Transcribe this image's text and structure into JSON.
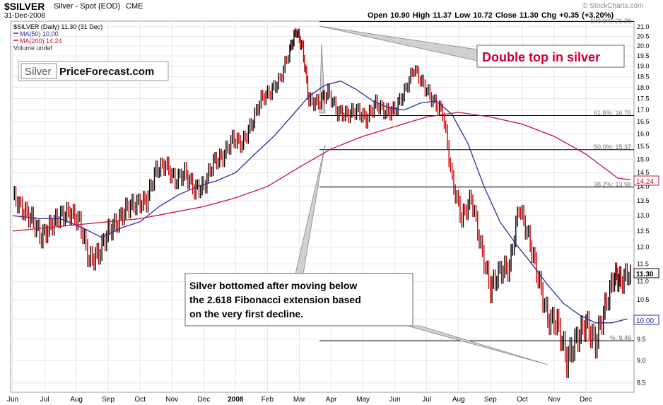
{
  "header": {
    "symbol": "$SILVER",
    "name": "Silver - Spot (EOD)",
    "exchange": "CME",
    "date": "31-Dec-2008",
    "ohlc": "Open 10.90  High 11.37  Low 10.72  Close 11.30  Chg +0.35 (+3.20%)",
    "watermark": "© StockCharts.com"
  },
  "legend": {
    "price": "$SILVER (Daily) 11.30 (31 Dec)",
    "ma50": "MA(50) 10.00",
    "ma200": "MA(200) 14.24",
    "volume": "Volume undef"
  },
  "logo": {
    "left": "Silver",
    "right": "PriceForecast.com"
  },
  "annotations": {
    "double_top": "Double top in silver",
    "note_line1": "Silver bottomed after moving below",
    "note_line2": "the 2.618 Fibonacci extension based",
    "note_line3": "on the very first decline."
  },
  "fib_labels": {
    "f100": "100.0%: 21.28",
    "f618": "61.8%: 16.76",
    "f50": "50.0%: 15.37",
    "f382": "38.2%: 13.98",
    "f9": "%: 9.46"
  },
  "price_tags": {
    "last": "11.30",
    "ma200": "14.24",
    "ma50": "10.00"
  },
  "colors": {
    "price": "#000000",
    "down_bar": "#cc0000",
    "ma50": "#2b2b9e",
    "ma200": "#cc1133",
    "callout": "#cc0033",
    "grid": "#e6e6e6"
  },
  "chart_data": {
    "type": "line",
    "title": "$SILVER Silver - Spot (EOD) CME",
    "x_months": [
      "Jun",
      "Jul",
      "Aug",
      "Sep",
      "Oct",
      "Nov",
      "Dec",
      "2008",
      "Feb",
      "Mar",
      "Apr",
      "May",
      "Jun",
      "Jul",
      "Aug",
      "Sep",
      "Oct",
      "Nov",
      "Dec"
    ],
    "y_ticks": [
      8.5,
      9.0,
      9.5,
      10.0,
      10.5,
      11.0,
      11.5,
      12.0,
      12.5,
      13.0,
      13.5,
      14.0,
      14.5,
      15.0,
      15.5,
      16.0,
      16.5,
      17.0,
      17.5,
      18.0,
      18.5,
      19.0,
      19.5,
      20.0,
      20.5,
      21.0
    ],
    "ylim": [
      8.3,
      21.3
    ],
    "y_scale": "log",
    "grid": true,
    "series": [
      {
        "name": "$SILVER (Daily)",
        "points": [
          [
            0,
            13.7
          ],
          [
            0.3,
            13.2
          ],
          [
            0.6,
            12.9
          ],
          [
            0.9,
            12.3
          ],
          [
            1.2,
            12.7
          ],
          [
            1.5,
            13.0
          ],
          [
            1.8,
            13.1
          ],
          [
            2.1,
            12.8
          ],
          [
            2.4,
            11.6
          ],
          [
            2.7,
            11.8
          ],
          [
            3.0,
            12.5
          ],
          [
            3.3,
            12.8
          ],
          [
            3.6,
            13.3
          ],
          [
            3.9,
            13.4
          ],
          [
            4.2,
            13.5
          ],
          [
            4.5,
            14.6
          ],
          [
            4.8,
            14.8
          ],
          [
            5.1,
            14.2
          ],
          [
            5.4,
            14.5
          ],
          [
            5.7,
            13.9
          ],
          [
            6.0,
            14.0
          ],
          [
            6.3,
            14.9
          ],
          [
            6.6,
            15.1
          ],
          [
            6.9,
            15.8
          ],
          [
            7.2,
            15.6
          ],
          [
            7.5,
            16.4
          ],
          [
            7.8,
            17.5
          ],
          [
            8.1,
            17.8
          ],
          [
            8.4,
            18.4
          ],
          [
            8.7,
            19.8
          ],
          [
            8.9,
            20.8
          ],
          [
            9.1,
            19.9
          ],
          [
            9.3,
            17.4
          ],
          [
            9.6,
            17.3
          ],
          [
            9.9,
            17.8
          ],
          [
            10.2,
            16.9
          ],
          [
            10.5,
            16.8
          ],
          [
            10.8,
            17.0
          ],
          [
            11.1,
            16.6
          ],
          [
            11.4,
            17.3
          ],
          [
            11.7,
            16.9
          ],
          [
            12.0,
            17.0
          ],
          [
            12.3,
            17.8
          ],
          [
            12.6,
            18.9
          ],
          [
            12.9,
            18.1
          ],
          [
            13.2,
            17.4
          ],
          [
            13.5,
            16.9
          ],
          [
            13.8,
            14.2
          ],
          [
            14.1,
            12.9
          ],
          [
            14.4,
            13.6
          ],
          [
            14.7,
            12.0
          ],
          [
            15.0,
            10.8
          ],
          [
            15.3,
            11.3
          ],
          [
            15.6,
            11.4
          ],
          [
            15.9,
            13.3
          ],
          [
            16.2,
            12.3
          ],
          [
            16.5,
            11.1
          ],
          [
            16.8,
            10.0
          ],
          [
            17.1,
            9.9
          ],
          [
            17.4,
            9.0
          ],
          [
            17.7,
            9.5
          ],
          [
            18.0,
            9.9
          ],
          [
            18.3,
            9.4
          ],
          [
            18.6,
            10.3
          ],
          [
            18.9,
            11.2
          ],
          [
            19.1,
            11.0
          ],
          [
            19.4,
            11.3
          ]
        ]
      },
      {
        "name": "MA(50)",
        "points": [
          [
            0,
            13.0
          ],
          [
            0.8,
            12.9
          ],
          [
            1.5,
            12.9
          ],
          [
            2.2,
            12.6
          ],
          [
            2.8,
            12.3
          ],
          [
            3.4,
            12.6
          ],
          [
            4.0,
            12.8
          ],
          [
            4.6,
            13.3
          ],
          [
            5.2,
            13.7
          ],
          [
            5.8,
            14.0
          ],
          [
            6.4,
            14.2
          ],
          [
            7.0,
            14.5
          ],
          [
            7.6,
            15.2
          ],
          [
            8.2,
            15.9
          ],
          [
            8.8,
            16.8
          ],
          [
            9.3,
            17.6
          ],
          [
            9.8,
            18.1
          ],
          [
            10.3,
            18.3
          ],
          [
            10.8,
            17.9
          ],
          [
            11.3,
            17.4
          ],
          [
            11.8,
            17.1
          ],
          [
            12.3,
            17.0
          ],
          [
            12.8,
            17.3
          ],
          [
            13.3,
            17.4
          ],
          [
            13.8,
            16.8
          ],
          [
            14.3,
            15.6
          ],
          [
            14.8,
            14.0
          ],
          [
            15.3,
            12.8
          ],
          [
            15.8,
            12.1
          ],
          [
            16.3,
            11.5
          ],
          [
            16.8,
            10.9
          ],
          [
            17.3,
            10.4
          ],
          [
            17.8,
            10.1
          ],
          [
            18.3,
            9.9
          ],
          [
            18.8,
            9.9
          ],
          [
            19.3,
            10.0
          ]
        ]
      },
      {
        "name": "MA(200)",
        "points": [
          [
            0,
            12.5
          ],
          [
            1,
            12.6
          ],
          [
            2,
            12.7
          ],
          [
            3,
            12.8
          ],
          [
            4,
            12.9
          ],
          [
            5,
            13.1
          ],
          [
            6,
            13.3
          ],
          [
            7,
            13.6
          ],
          [
            8,
            14.0
          ],
          [
            9,
            14.7
          ],
          [
            10,
            15.4
          ],
          [
            11,
            15.9
          ],
          [
            12,
            16.3
          ],
          [
            13,
            16.7
          ],
          [
            14,
            16.9
          ],
          [
            15,
            16.7
          ],
          [
            16,
            16.4
          ],
          [
            17,
            15.9
          ],
          [
            18,
            15.2
          ],
          [
            19,
            14.3
          ],
          [
            19.4,
            14.24
          ]
        ]
      }
    ]
  }
}
